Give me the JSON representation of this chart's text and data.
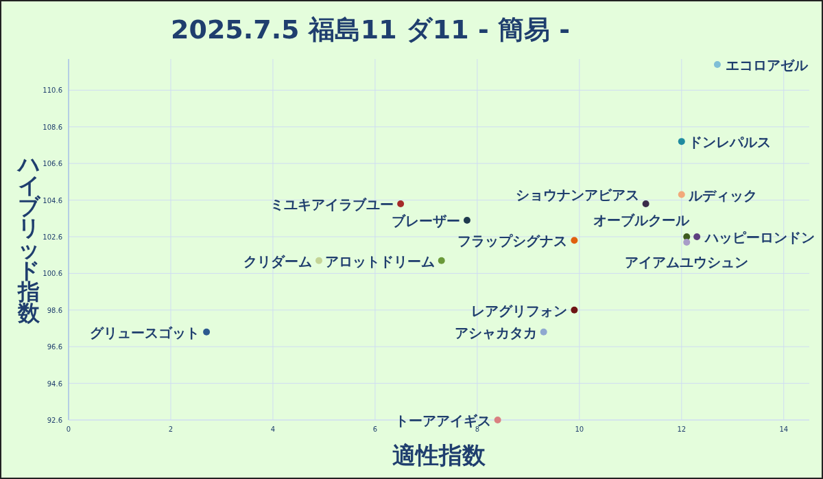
{
  "chart_data": {
    "type": "scatter",
    "title": "2025.7.5 福島11 ダ11 - 簡易 -",
    "xlabel": "適性指数",
    "ylabel": "ハイブリッド指数",
    "xlim": [
      0,
      14.5
    ],
    "xticks": [
      0,
      2,
      4,
      6,
      8,
      10,
      12,
      14
    ],
    "ylim": [
      92.6,
      112.3
    ],
    "yticks": [
      92.6,
      94.6,
      96.6,
      98.6,
      100.6,
      102.6,
      104.6,
      106.6,
      108.6,
      110.6
    ],
    "grid": true,
    "marker": "circle",
    "series": [
      {
        "name": "エコロアゼル",
        "color": "#7fbfd6",
        "x": [
          12.7
        ],
        "values": [
          112.0
        ]
      },
      {
        "name": "ドンレパルス",
        "color": "#1f8ba0",
        "x": [
          12.0
        ],
        "values": [
          107.8
        ]
      },
      {
        "name": "ルディック",
        "color": "#f2a97a",
        "x": [
          12.0
        ],
        "values": [
          104.9
        ]
      },
      {
        "name": "ショウナンアビアス",
        "color": "#3a2a4a",
        "x": [
          11.3
        ],
        "values": [
          104.4
        ]
      },
      {
        "name": "ミユキアイラブユー",
        "color": "#a52a2a",
        "x": [
          6.5
        ],
        "values": [
          104.4
        ]
      },
      {
        "name": "ブレーザー",
        "color": "#1f3a4f",
        "x": [
          7.8
        ],
        "values": [
          103.5
        ]
      },
      {
        "name": "オーブルクール",
        "color": "#3d5a1e",
        "x": [
          12.1
        ],
        "values": [
          102.6
        ]
      },
      {
        "name": "ハッピーロンドン",
        "color": "#5e3f7f",
        "x": [
          12.3
        ],
        "values": [
          102.6
        ]
      },
      {
        "name": "アイアムユウシュン",
        "color": "#a89cc8",
        "x": [
          12.1
        ],
        "values": [
          102.3
        ]
      },
      {
        "name": "フラップシグナス",
        "color": "#e0600f",
        "x": [
          9.9
        ],
        "values": [
          102.4
        ]
      },
      {
        "name": "クリダーム",
        "color": "#c4d496",
        "x": [
          4.9
        ],
        "values": [
          101.3
        ]
      },
      {
        "name": "アロットドリーム",
        "color": "#6a9a3a",
        "x": [
          7.3
        ],
        "values": [
          101.3
        ]
      },
      {
        "name": "レアグリフォン",
        "color": "#6e1414",
        "x": [
          9.9
        ],
        "values": [
          98.6
        ]
      },
      {
        "name": "アシャカタカ",
        "color": "#8fa8d0",
        "x": [
          9.3
        ],
        "values": [
          97.4
        ]
      },
      {
        "name": "グリュースゴット",
        "color": "#2d5a8f",
        "x": [
          2.7
        ],
        "values": [
          97.4
        ]
      },
      {
        "name": "トーアアイギス",
        "color": "#d98080",
        "x": [
          8.4
        ],
        "values": [
          92.6
        ]
      }
    ]
  }
}
